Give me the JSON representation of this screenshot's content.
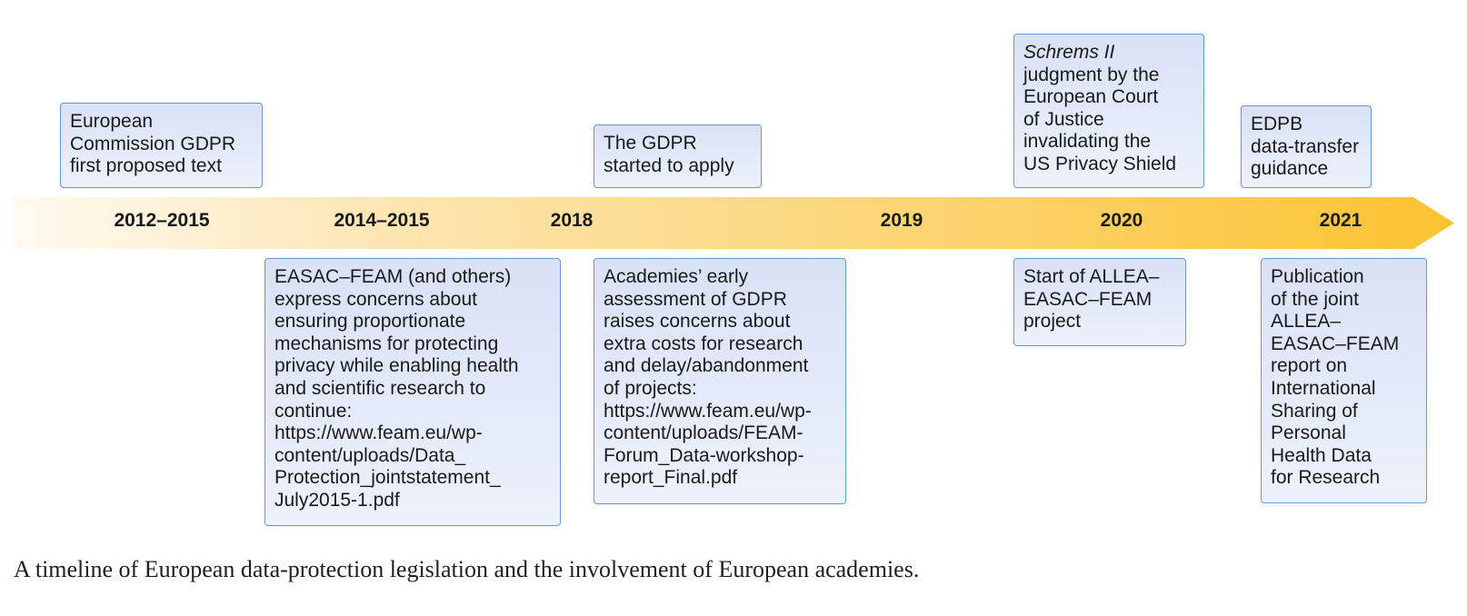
{
  "colors": {
    "arrow_start": "#fffaf2",
    "arrow_end": "#fbc331",
    "box_border": "#6d96c9",
    "box_fill_top": "#d9e1f6",
    "box_fill_bottom": "#edf1fb"
  },
  "years": [
    "2012–2015",
    "2014–2015",
    "2018",
    "2019",
    "2020",
    "2021"
  ],
  "events_top": [
    {
      "text": "European\nCommission GDPR\nfirst proposed text"
    },
    {
      "text": "The GDPR\nstarted to apply"
    },
    {
      "emphasis": "Schrems II",
      "text": "judgment by the\nEuropean Court\nof Justice\ninvalidating the\nUS Privacy Shield"
    },
    {
      "text": "EDPB\ndata-transfer\nguidance"
    }
  ],
  "events_bottom": [
    {
      "text": "EASAC–FEAM (and others)\nexpress concerns about\nensuring proportionate\nmechanisms for protecting\nprivacy while enabling health\nand scientific research to\ncontinue:\nhttps://www.feam.eu/wp-\ncontent/uploads/Data_\nProtection_jointstatement_\nJuly2015-1.pdf"
    },
    {
      "text": "Academies’ early\nassessment of GDPR\nraises concerns about\nextra costs for research\nand delay/abandonment\nof projects:\nhttps://www.feam.eu/wp-\ncontent/uploads/FEAM-\nForum_Data-workshop-\nreport_Final.pdf"
    },
    {
      "text": "Start of ALLEA–\nEASAC–FEAM\nproject"
    },
    {
      "text": "Publication\nof the joint\nALLEA–\nEASAC–FEAM\nreport on\nInternational\nSharing of\nPersonal\nHealth Data\nfor Research"
    }
  ],
  "caption": "A timeline of European data-protection legislation and the involvement of European academies."
}
